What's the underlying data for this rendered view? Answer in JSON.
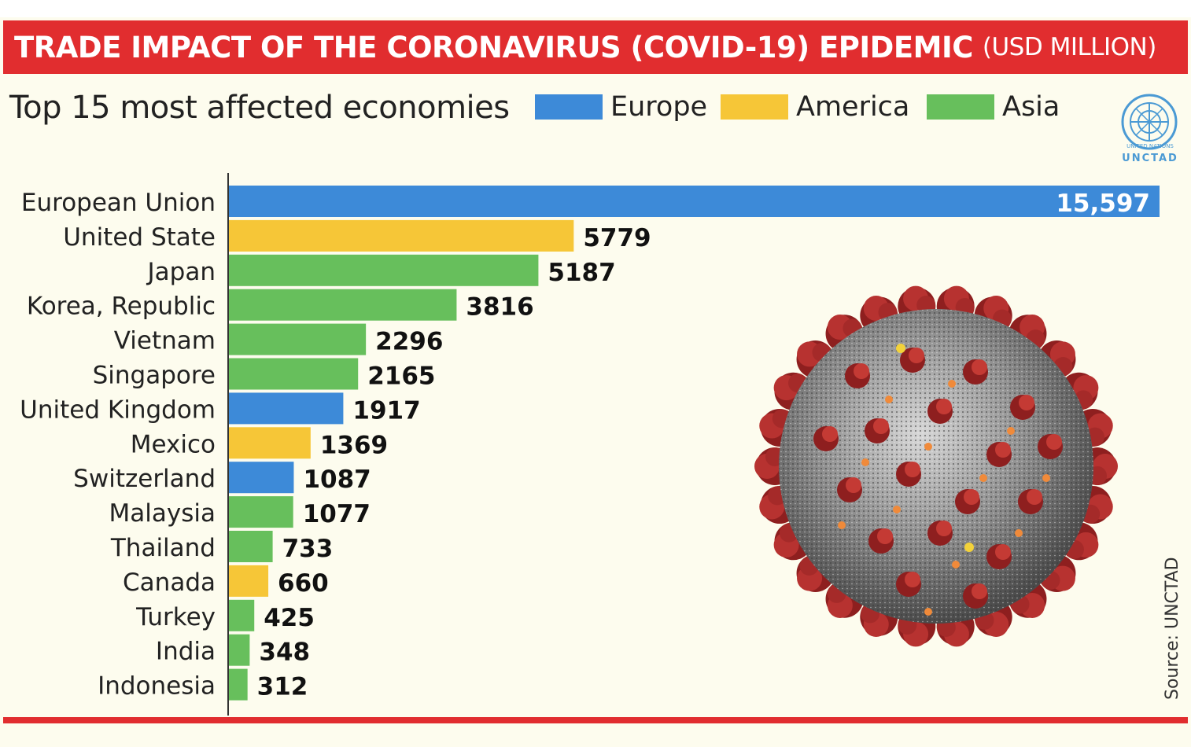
{
  "header": {
    "title": "TRADE IMPACT OF THE CORONAVIRUS (COVID-19) EPIDEMIC",
    "unit": "(USD MILLION)"
  },
  "subtitle": "Top 15 most affected economies",
  "legend": [
    {
      "label": "Europe",
      "color": "#3d8ad8"
    },
    {
      "label": "America",
      "color": "#f6c637"
    },
    {
      "label": "Asia",
      "color": "#67bf5c"
    }
  ],
  "logo": {
    "text": "UNCTAD",
    "small_text": "UNITED NATIONS"
  },
  "source": "Source: UNCTAD",
  "colors": {
    "header": "#e12d2f",
    "background": "#fdfcee",
    "europe": "#3d8ad8",
    "america": "#f6c637",
    "asia": "#67bf5c"
  },
  "chart_data": {
    "type": "bar",
    "orientation": "horizontal",
    "title": "TRADE IMPACT OF THE CORONAVIRUS (COVID-19) EPIDEMIC (USD MILLION)",
    "subtitle": "Top 15 most affected economies",
    "categories": [
      "European Union",
      "United State",
      "Japan",
      "Korea, Republic",
      "Vietnam",
      "Singapore",
      "United Kingdom",
      "Mexico",
      "Switzerland",
      "Malaysia",
      "Thailand",
      "Canada",
      "Turkey",
      "India",
      "Indonesia"
    ],
    "values": [
      15597,
      5779,
      5187,
      3816,
      2296,
      2165,
      1917,
      1369,
      1087,
      1077,
      733,
      660,
      425,
      348,
      312
    ],
    "value_labels": [
      "15,597",
      "5779",
      "5187",
      "3816",
      "2296",
      "2165",
      "1917",
      "1369",
      "1087",
      "1077",
      "733",
      "660",
      "425",
      "348",
      "312"
    ],
    "regions": [
      "Europe",
      "America",
      "Asia",
      "Asia",
      "Asia",
      "Asia",
      "Europe",
      "America",
      "Europe",
      "Asia",
      "Asia",
      "America",
      "Asia",
      "Asia",
      "Asia"
    ],
    "xlim": [
      0,
      15597
    ],
    "xlabel": "",
    "ylabel": "",
    "grid": false,
    "legend_position": "top"
  }
}
